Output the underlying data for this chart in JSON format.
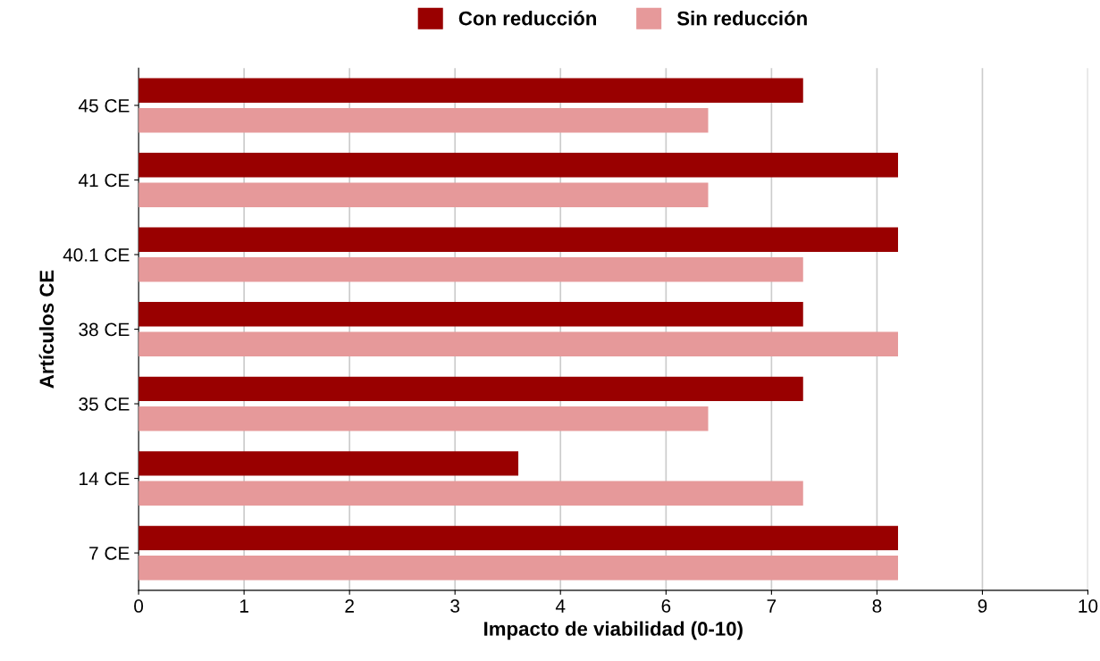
{
  "chart_data": {
    "type": "bar",
    "orientation": "horizontal",
    "xlabel": "Impacto de viabilidad (0-10)",
    "ylabel": "Artículos CE",
    "categories": [
      "45 CE",
      "41 CE",
      "40.1 CE",
      "38 CE",
      "35 CE",
      "14 CE",
      "7 CE"
    ],
    "series": [
      {
        "name": "Con reducción",
        "color": "#990000",
        "values": [
          7,
          8,
          8,
          7,
          7,
          4,
          8
        ]
      },
      {
        "name": "Sin reducción",
        "color": "#e6999a",
        "values": [
          6,
          6,
          7,
          8,
          6,
          7,
          8
        ]
      }
    ],
    "xlim": [
      0,
      10
    ],
    "xticks": [
      0,
      {
        "value": 1.111,
        "label": "1"
      },
      {
        "value": 2.222,
        "label": "2"
      },
      {
        "value": 3.333,
        "label": "3"
      },
      {
        "value": 4.444,
        "label": "4"
      },
      {
        "value": 5.556,
        "label": "6"
      },
      {
        "value": 6.667,
        "label": "7"
      },
      {
        "value": 7.778,
        "label": "8"
      },
      {
        "value": 8.889,
        "label": "9"
      },
      10
    ],
    "grid": "x",
    "legend": "top"
  }
}
